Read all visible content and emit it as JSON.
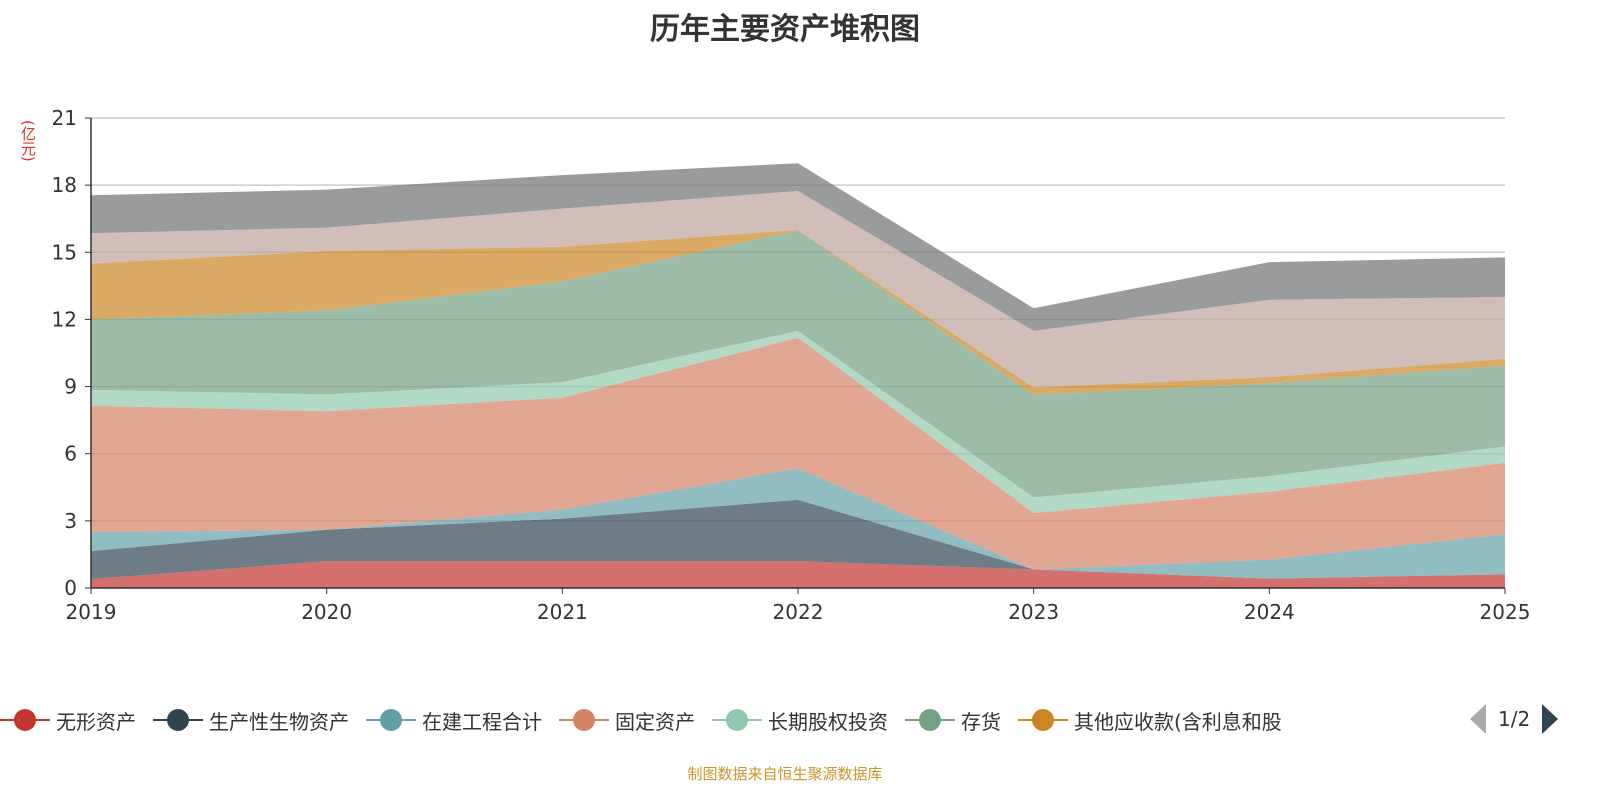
{
  "chart_data": {
    "type": "area",
    "stacked": true,
    "title": "历年主要资产堆积图",
    "ylabel": "(亿元)",
    "xlabel": "",
    "ylim": [
      0,
      21
    ],
    "yticks": [
      0,
      3,
      6,
      9,
      12,
      15,
      18,
      21
    ],
    "categories": [
      "2019",
      "2020",
      "2021",
      "2022",
      "2023",
      "2024",
      "2025"
    ],
    "grid": true,
    "series": [
      {
        "name": "无形资产",
        "color": "#c23531",
        "values": [
          0.4,
          1.2,
          1.2,
          1.2,
          0.83,
          0.42,
          0.61
        ]
      },
      {
        "name": "生产性生物资产",
        "color": "#2f4554",
        "values": [
          1.25,
          1.4,
          1.9,
          2.74,
          0,
          0,
          0
        ]
      },
      {
        "name": "在建工程合计",
        "color": "#61a0a8",
        "values": [
          0.85,
          0,
          0.4,
          1.4,
          0,
          0.85,
          1.79
        ]
      },
      {
        "name": "固定资产",
        "color": "#d48265",
        "values": [
          5.65,
          5.3,
          5.0,
          5.84,
          2.52,
          3.03,
          3.19
        ]
      },
      {
        "name": "长期股权投资",
        "color": "#91c7ae",
        "values": [
          0.7,
          0.75,
          0.7,
          0.31,
          0.7,
          0.7,
          0.73
        ]
      },
      {
        "name": "存货",
        "color": "#749f83",
        "values": [
          3.15,
          3.75,
          4.5,
          4.49,
          4.58,
          4.15,
          3.62
        ]
      },
      {
        "name": "其他应收款(含利息和股",
        "color": "#ca8622",
        "values": [
          2.5,
          2.65,
          1.55,
          0.02,
          0.33,
          0.27,
          0.3
        ]
      },
      {
        "name": "",
        "color": "#bda29a",
        "values": [
          1.35,
          1.05,
          1.7,
          1.74,
          2.53,
          3.46,
          2.76
        ]
      },
      {
        "name": "",
        "color": "#6e7074",
        "values": [
          1.7,
          1.7,
          1.5,
          1.24,
          1.01,
          1.68,
          1.77
        ]
      }
    ],
    "legend_position": "bottom"
  },
  "legend": {
    "page": "1/2"
  },
  "footer": "制图数据来自恒生聚源数据库"
}
